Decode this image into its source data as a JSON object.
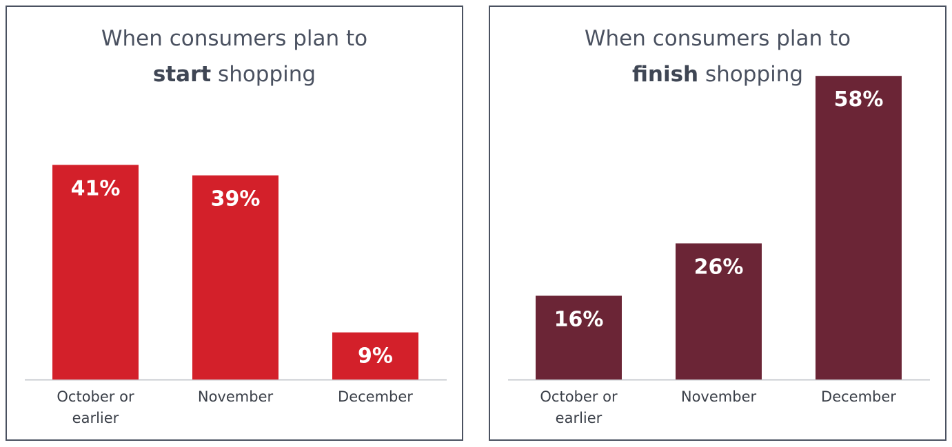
{
  "chart_data": [
    {
      "type": "bar",
      "title_line1": "When consumers plan to",
      "title_bold": "start",
      "title_rest": "shopping",
      "categories": [
        [
          "October or",
          "earlier"
        ],
        [
          "November"
        ],
        [
          "December"
        ]
      ],
      "values": [
        41,
        39,
        9
      ],
      "value_labels": [
        "41%",
        "39%",
        "9%"
      ],
      "ylim": [
        0,
        60
      ],
      "color": "#d3202a",
      "grid": false,
      "legend": "none"
    },
    {
      "type": "bar",
      "title_line1": "When consumers plan to",
      "title_bold": "finish",
      "title_rest": "shopping",
      "categories": [
        [
          "October or",
          "earlier"
        ],
        [
          "November"
        ],
        [
          "December"
        ]
      ],
      "values": [
        16,
        26,
        58
      ],
      "value_labels": [
        "16%",
        "26%",
        "58%"
      ],
      "ylim": [
        0,
        60
      ],
      "color": "#6b2536",
      "grid": false,
      "legend": "none"
    }
  ]
}
